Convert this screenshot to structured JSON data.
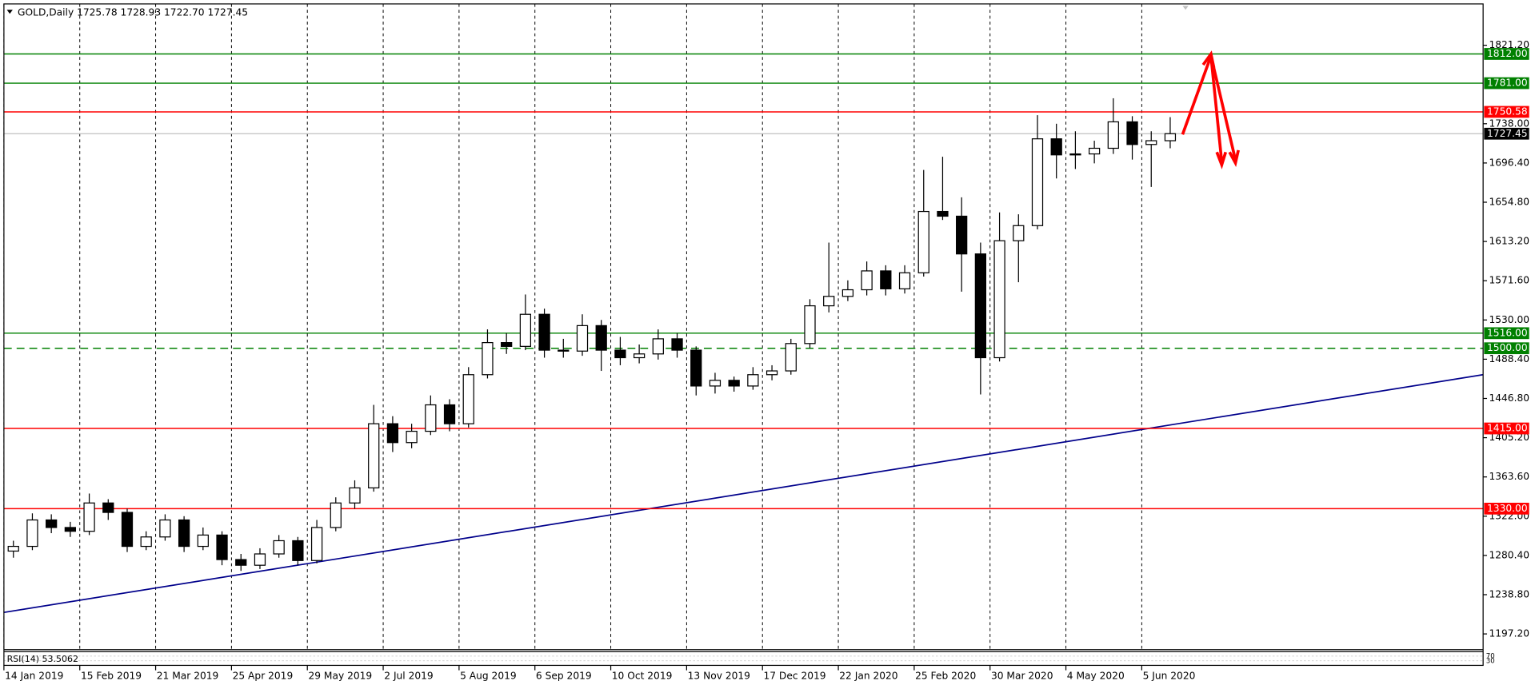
{
  "chart_data": {
    "type": "candlestick",
    "title": "GOLD,Daily  1725.78 1728.93 1722.70 1727.45",
    "up_color": "#ffffff",
    "down_color": "#000000",
    "open": [
      1285,
      1290,
      1318,
      1310,
      1306,
      1336,
      1326,
      1290,
      1300,
      1318,
      1290,
      1302,
      1276,
      1270,
      1282,
      1296,
      1275,
      1310,
      1336,
      1352,
      1420,
      1400,
      1412,
      1440,
      1420,
      1472,
      1506,
      1502,
      1536,
      1498,
      1497,
      1524,
      1498,
      1490,
      1494,
      1510,
      1498,
      1460,
      1466,
      1460,
      1472,
      1476,
      1505,
      1545,
      1555,
      1562,
      1582,
      1563,
      1580,
      1645,
      1640,
      1600,
      1490,
      1614,
      1630,
      1722,
      1705,
      1706,
      1712,
      1740,
      1716,
      1720
    ],
    "high": [
      1296,
      1325,
      1324,
      1316,
      1346,
      1340,
      1330,
      1306,
      1324,
      1322,
      1310,
      1306,
      1282,
      1288,
      1302,
      1300,
      1318,
      1342,
      1360,
      1440,
      1428,
      1420,
      1450,
      1446,
      1480,
      1520,
      1516,
      1557,
      1542,
      1510,
      1536,
      1530,
      1512,
      1504,
      1520,
      1516,
      1502,
      1474,
      1470,
      1480,
      1482,
      1510,
      1552,
      1612,
      1572,
      1592,
      1588,
      1588,
      1689,
      1703,
      1660,
      1612,
      1644,
      1642,
      1747,
      1738,
      1730,
      1720,
      1765,
      1746,
      1730,
      1745
    ],
    "low": [
      1278,
      1286,
      1304,
      1300,
      1302,
      1318,
      1284,
      1286,
      1296,
      1284,
      1286,
      1270,
      1264,
      1266,
      1278,
      1270,
      1272,
      1306,
      1330,
      1348,
      1390,
      1394,
      1408,
      1412,
      1416,
      1468,
      1494,
      1498,
      1490,
      1490,
      1492,
      1476,
      1482,
      1484,
      1488,
      1490,
      1450,
      1452,
      1454,
      1456,
      1466,
      1472,
      1500,
      1538,
      1550,
      1556,
      1556,
      1558,
      1576,
      1636,
      1560,
      1451,
      1486,
      1570,
      1626,
      1680,
      1690,
      1696,
      1706,
      1700,
      1671,
      1712
    ],
    "close": [
      1290,
      1318,
      1310,
      1306,
      1336,
      1326,
      1290,
      1300,
      1318,
      1290,
      1302,
      1276,
      1270,
      1282,
      1296,
      1275,
      1310,
      1336,
      1352,
      1420,
      1400,
      1412,
      1440,
      1420,
      1472,
      1506,
      1502,
      1536,
      1498,
      1497,
      1524,
      1498,
      1490,
      1494,
      1510,
      1498,
      1460,
      1466,
      1460,
      1472,
      1476,
      1505,
      1545,
      1555,
      1562,
      1582,
      1563,
      1580,
      1645,
      1640,
      1600,
      1490,
      1614,
      1630,
      1722,
      1705,
      1706,
      1712,
      1740,
      1716,
      1720,
      1727.45
    ],
    "xlim": [
      0,
      78
    ],
    "xticks": [
      {
        "value": 0,
        "label": "14 Jan 2019"
      },
      {
        "value": 4,
        "label": "15 Feb 2019"
      },
      {
        "value": 8,
        "label": "21 Mar 2019"
      },
      {
        "value": 12,
        "label": "25 Apr 2019"
      },
      {
        "value": 16,
        "label": "29 May 2019"
      },
      {
        "value": 20,
        "label": "2 Jul 2019"
      },
      {
        "value": 24,
        "label": "5 Aug 2019"
      },
      {
        "value": 28,
        "label": "6 Sep 2019"
      },
      {
        "value": 32,
        "label": "10 Oct 2019"
      },
      {
        "value": 36,
        "label": "13 Nov 2019"
      },
      {
        "value": 40,
        "label": "17 Dec 2019"
      },
      {
        "value": 44,
        "label": "22 Jan 2020"
      },
      {
        "value": 48,
        "label": "25 Feb 2020"
      },
      {
        "value": 52,
        "label": "30 Mar 2020"
      },
      {
        "value": 56,
        "label": "4 May 2020"
      },
      {
        "value": 60,
        "label": "5 Jun 2020"
      }
    ],
    "ylim": [
      1180.5,
      1865
    ],
    "yticks": [
      {
        "value": 1821.2,
        "label": "1821.20"
      },
      {
        "value": 1738,
        "label": "1738.00"
      },
      {
        "value": 1696.4,
        "label": "1696.40"
      },
      {
        "value": 1654.8,
        "label": "1654.80"
      },
      {
        "value": 1613.2,
        "label": "1613.20"
      },
      {
        "value": 1571.6,
        "label": "1571.60"
      },
      {
        "value": 1530,
        "label": "1530.00"
      },
      {
        "value": 1488.4,
        "label": "1488.40"
      },
      {
        "value": 1446.8,
        "label": "1446.80"
      },
      {
        "value": 1405.2,
        "label": "1405.20"
      },
      {
        "value": 1363.6,
        "label": "1363.60"
      },
      {
        "value": 1322,
        "label": "1322.00"
      },
      {
        "value": 1280.4,
        "label": "1280.40"
      },
      {
        "value": 1238.8,
        "label": "1238.80"
      },
      {
        "value": 1197.2,
        "label": "1197.20"
      }
    ],
    "grid": true,
    "levels": [
      {
        "value": 1812,
        "label": "1812.00",
        "color": "#008000",
        "style": "solid"
      },
      {
        "value": 1781,
        "label": "1781.00",
        "color": "#008000",
        "style": "solid"
      },
      {
        "value": 1750.58,
        "label": "1750.58",
        "color": "#ff0000",
        "style": "solid"
      },
      {
        "value": 1516,
        "label": "1516.00",
        "color": "#008000",
        "style": "solid"
      },
      {
        "value": 1500,
        "label": "1500.00",
        "color": "#008000",
        "style": "dashed"
      },
      {
        "value": 1415,
        "label": "1415.00",
        "color": "#ff0000",
        "style": "solid"
      },
      {
        "value": 1330,
        "label": "1330.00",
        "color": "#ff0000",
        "style": "solid"
      }
    ],
    "last_price": {
      "value": 1727.45,
      "color": "#000000"
    },
    "trendline": {
      "from": [
        0,
        1220
      ],
      "to": [
        78,
        1472
      ],
      "color": "#00008b"
    },
    "indicator": {
      "label": "RSI(14) 53.5062",
      "ylim": [
        0,
        100
      ],
      "yticks": [
        70,
        30
      ]
    }
  }
}
